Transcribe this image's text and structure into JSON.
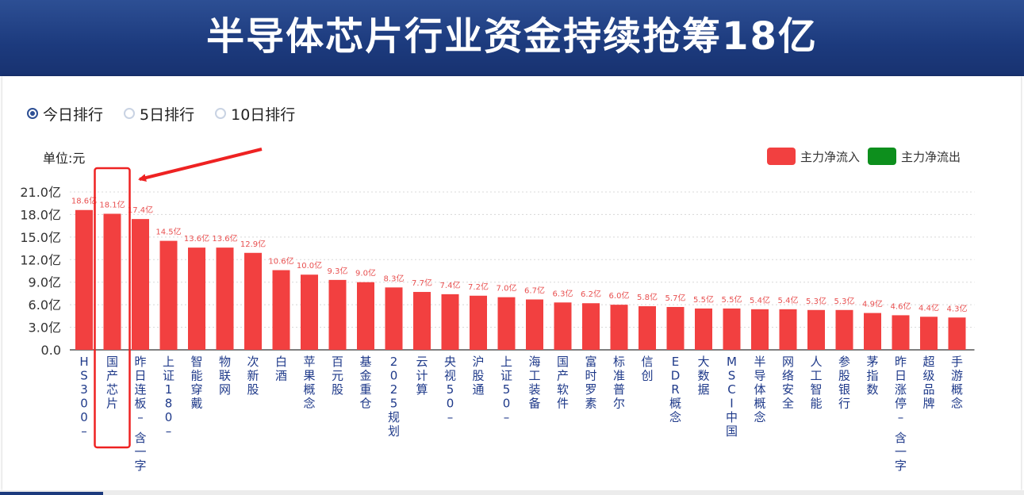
{
  "banner": {
    "title": "半导体芯片行业资金持续抢筹18亿"
  },
  "tabs": [
    {
      "label": "今日排行",
      "selected": true
    },
    {
      "label": "5日排行",
      "selected": false
    },
    {
      "label": "10日排行",
      "selected": false
    }
  ],
  "unit_label": "单位:元",
  "legend": [
    {
      "label": "主力净流入",
      "color": "#f24040"
    },
    {
      "label": "主力净流出",
      "color": "#0d8f1d"
    }
  ],
  "chart_data": {
    "type": "bar",
    "ylim": [
      0,
      21
    ],
    "y_ticks": [
      "0.0",
      "3.0亿",
      "6.0亿",
      "9.0亿",
      "12.0亿",
      "15.0亿",
      "18.0亿",
      "21.0亿"
    ],
    "grid": true,
    "legend_position": "top-right",
    "bar_color": "#f24040",
    "categories": [
      "HS300_",
      "国产芯片",
      "昨日连板_含一字",
      "上证180_",
      "智能穿戴",
      "物联网",
      "次新股",
      "白酒",
      "苹果概念",
      "百元股",
      "基金重仓",
      "2025规划",
      "云计算",
      "央视50_",
      "沪股通",
      "上证50_",
      "海工装备",
      "国产软件",
      "富时罗素",
      "标准普尔",
      "信创",
      "EDR概念",
      "大数据",
      "MSCI中国",
      "半导体概念",
      "网络安全",
      "人工智能",
      "参股银行",
      "茅指数",
      "昨日涨停_含一字",
      "超级品牌",
      "手游概念"
    ],
    "values": [
      18.6,
      18.1,
      17.4,
      14.5,
      13.6,
      13.6,
      12.9,
      10.6,
      10.0,
      9.3,
      9.0,
      8.3,
      7.7,
      7.4,
      7.2,
      7.0,
      6.7,
      6.3,
      6.2,
      6.0,
      5.8,
      5.7,
      5.5,
      5.5,
      5.4,
      5.4,
      5.3,
      5.3,
      4.9,
      4.6,
      4.4,
      4.3
    ],
    "value_labels": [
      "18.6亿",
      "18.1亿",
      "17.4亿",
      "14.5亿",
      "13.6亿",
      "13.6亿",
      "12.9亿",
      "10.6亿",
      "10.0亿",
      "9.3亿",
      "9.0亿",
      "8.3亿",
      "7.7亿",
      "7.4亿",
      "7.2亿",
      "7.0亿",
      "6.7亿",
      "6.3亿",
      "6.2亿",
      "6.0亿",
      "5.8亿",
      "5.7亿",
      "5.5亿",
      "5.5亿",
      "5.4亿",
      "5.4亿",
      "5.3亿",
      "5.3亿",
      "4.9亿",
      "4.6亿",
      "4.4亿",
      "4.3亿"
    ],
    "highlight_index": 1
  }
}
